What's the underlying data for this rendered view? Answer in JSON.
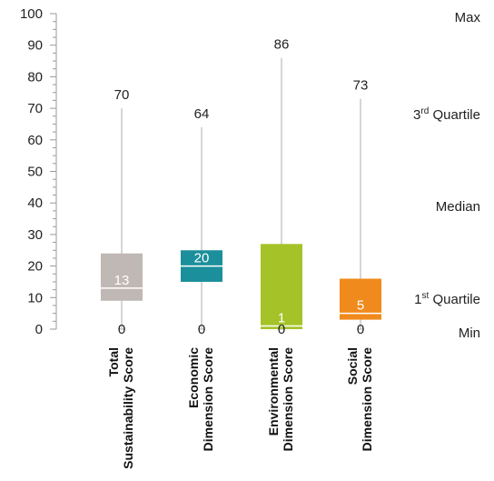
{
  "chart_data": {
    "type": "boxplot",
    "ylim": [
      0,
      100
    ],
    "yticks": [
      0,
      10,
      20,
      30,
      40,
      50,
      60,
      70,
      80,
      90,
      100
    ],
    "ytick_labels": [
      "0",
      "10",
      "20",
      "30",
      "40",
      "50",
      "60",
      "70",
      "80",
      "90",
      "100"
    ],
    "categories": [
      [
        "Total",
        "Sustainability Score"
      ],
      [
        "Economic",
        "Dimension Score"
      ],
      [
        "Environmental",
        "Dimension Score"
      ],
      [
        "Social",
        "Dimension Score"
      ]
    ],
    "series": [
      {
        "category": "Total Sustainability Score",
        "min": 0,
        "q1": 9,
        "median": 13,
        "q3": 24,
        "max": 70,
        "color": "#c0b8b4",
        "max_label": "70",
        "median_label": "13",
        "min_label": "0"
      },
      {
        "category": "Economic Dimension Score",
        "min": 0,
        "q1": 15,
        "median": 20,
        "q3": 25,
        "max": 64,
        "color": "#1b8f9b",
        "max_label": "64",
        "median_label": "20",
        "min_label": "0"
      },
      {
        "category": "Environmental Dimension Score",
        "min": 0,
        "q1": 0,
        "median": 1,
        "q3": 27,
        "max": 86,
        "color": "#a5c329",
        "max_label": "86",
        "median_label": "1",
        "min_label": "0"
      },
      {
        "category": "Social Dimension Score",
        "min": 0,
        "q1": 3,
        "median": 5,
        "q3": 16,
        "max": 73,
        "color": "#f08a1d",
        "max_label": "73",
        "median_label": "5",
        "min_label": "0"
      }
    ],
    "legend": [
      {
        "base": "Max",
        "sup": "",
        "rest": ""
      },
      {
        "base": "3",
        "sup": "rd",
        "rest": " Quartile"
      },
      {
        "base": "Median",
        "sup": "",
        "rest": ""
      },
      {
        "base": "1",
        "sup": "st",
        "rest": " Quartile"
      },
      {
        "base": "Min",
        "sup": "",
        "rest": ""
      }
    ],
    "legend_placement": "right",
    "grid": false
  }
}
